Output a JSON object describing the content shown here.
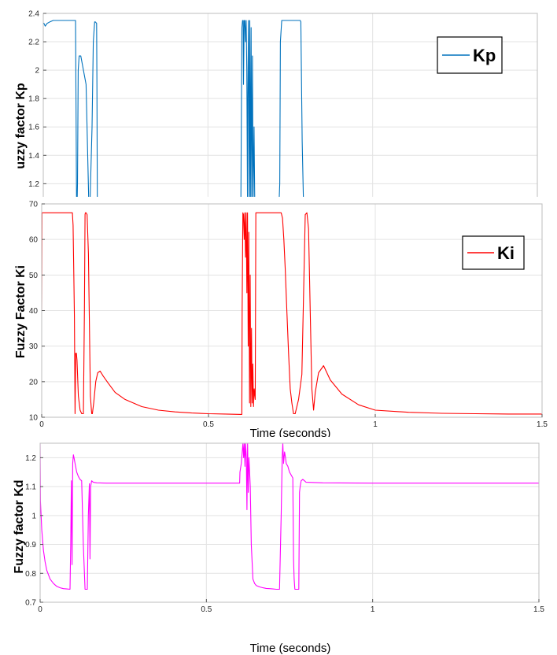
{
  "chart_data": [
    {
      "type": "line",
      "ylabel": "uzzy factor Kp",
      "xlabel": "",
      "xlim": [
        0,
        1.5
      ],
      "ylim": [
        1.08,
        2.4
      ],
      "yticks": [
        "2.4",
        "2.2",
        "2",
        "1.8",
        "1.6",
        "1.4",
        "1.2"
      ],
      "xticks": [],
      "grid": true,
      "legend_position": "top-right",
      "series": [
        {
          "name": "Kp",
          "color": "#0072bd",
          "x": [
            0,
            0.002,
            0.006,
            0.012,
            0.02,
            0.03,
            0.04,
            0.08,
            0.098,
            0.1,
            0.101,
            0.103,
            0.104,
            0.106,
            0.109,
            0.114,
            0.13,
            0.138,
            0.142,
            0.148,
            0.152,
            0.156,
            0.158,
            0.162,
            0.163,
            0.164,
            0.165,
            0.3,
            0.5,
            0.6,
            0.601,
            0.603,
            0.605,
            0.607,
            0.608,
            0.61,
            0.612,
            0.614,
            0.616,
            0.618,
            0.62,
            0.621,
            0.623,
            0.625,
            0.627,
            0.629,
            0.631,
            0.633,
            0.635,
            0.637,
            0.64,
            0.642,
            0.643,
            0.648,
            0.65,
            0.7,
            0.716,
            0.718,
            0.72,
            0.724,
            0.728,
            0.73,
            0.732,
            0.735,
            0.74,
            0.745,
            0.75,
            0.755,
            0.76,
            0.765,
            0.77,
            0.775,
            0.78,
            0.782,
            0.786,
            0.79,
            0.792,
            0.795,
            0.8,
            0.803,
            0.805,
            1.0
          ],
          "values": [
            2.33,
            2.33,
            2.31,
            2.33,
            2.34,
            2.35,
            2.35,
            2.35,
            2.35,
            1.5,
            1.08,
            1.08,
            1.2,
            2.0,
            2.1,
            2.1,
            1.9,
            1.08,
            1.08,
            1.6,
            2.2,
            2.34,
            2.34,
            2.33,
            1.9,
            1.08,
            1.08,
            1.08,
            1.08,
            1.08,
            1.5,
            2.3,
            2.35,
            2.35,
            1.9,
            2.35,
            2.35,
            2.2,
            2.35,
            2.0,
            1.08,
            1.8,
            2.35,
            1.08,
            2.35,
            1.08,
            2.3,
            1.08,
            2.1,
            1.08,
            1.6,
            1.08,
            1.08,
            1.08,
            1.08,
            1.08,
            1.08,
            1.2,
            2.2,
            2.35,
            2.35,
            2.35,
            2.35,
            2.35,
            2.35,
            2.35,
            2.35,
            2.35,
            2.35,
            2.35,
            2.35,
            2.35,
            2.35,
            2.34,
            1.5,
            1.08,
            1.08,
            1.08,
            1.08,
            1.08,
            1.08,
            1.08
          ]
        }
      ]
    },
    {
      "type": "line",
      "ylabel": "Fuzzy Factor Ki",
      "xlabel": "Time (seconds)",
      "xlim": [
        0,
        1.5
      ],
      "ylim": [
        10,
        70
      ],
      "yticks": [
        "70",
        "60",
        "50",
        "40",
        "30",
        "20",
        "10"
      ],
      "xticks": [
        "0",
        "0.5",
        "1",
        "1.5"
      ],
      "grid": true,
      "legend_position": "top-right",
      "series": [
        {
          "name": "Ki",
          "color": "#ff0000",
          "x": [
            0,
            0.001,
            0.09,
            0.092,
            0.094,
            0.096,
            0.098,
            0.1,
            0.102,
            0.104,
            0.106,
            0.11,
            0.115,
            0.12,
            0.125,
            0.128,
            0.13,
            0.131,
            0.133,
            0.136,
            0.14,
            0.146,
            0.149,
            0.15,
            0.152,
            0.156,
            0.162,
            0.168,
            0.175,
            0.185,
            0.2,
            0.22,
            0.25,
            0.3,
            0.35,
            0.4,
            0.45,
            0.5,
            0.55,
            0.6,
            0.601,
            0.603,
            0.605,
            0.607,
            0.609,
            0.611,
            0.613,
            0.615,
            0.617,
            0.619,
            0.621,
            0.623,
            0.625,
            0.627,
            0.629,
            0.631,
            0.633,
            0.635,
            0.637,
            0.64,
            0.642,
            0.645,
            0.65,
            0.7,
            0.718,
            0.722,
            0.726,
            0.73,
            0.735,
            0.74,
            0.745,
            0.75,
            0.755,
            0.76,
            0.77,
            0.78,
            0.79,
            0.795,
            0.8,
            0.805,
            0.81,
            0.815,
            0.82,
            0.83,
            0.845,
            0.865,
            0.9,
            0.95,
            1.0,
            1.1,
            1.2,
            1.3,
            1.4,
            1.5
          ],
          "values": [
            40,
            67.5,
            67.5,
            67.5,
            64,
            52,
            38,
            11,
            28,
            28,
            26,
            16,
            12,
            11,
            11,
            40,
            67,
            67.5,
            67.5,
            67,
            56,
            16,
            12,
            11,
            11,
            14,
            20,
            22.5,
            23,
            21.5,
            19.5,
            17,
            15,
            13,
            12,
            11.5,
            11.2,
            11,
            10.9,
            10.8,
            40,
            67.5,
            67,
            60,
            67.5,
            55,
            67.5,
            45,
            67.5,
            30,
            62,
            14,
            50,
            13,
            35,
            14,
            25,
            13,
            18,
            15,
            67.5,
            67.5,
            67.5,
            67.5,
            67.5,
            66,
            60,
            52,
            40,
            28,
            18,
            14,
            11,
            11,
            15,
            22,
            67,
            67.5,
            63,
            40,
            18,
            12,
            17,
            22.5,
            24.5,
            20.5,
            16.5,
            13.5,
            12,
            11.4,
            11.1,
            11,
            10.9,
            10.9
          ]
        }
      ]
    },
    {
      "type": "line",
      "ylabel": "Fuzzy factor Kd",
      "xlabel": "Time (seconds)",
      "xlim": [
        0,
        1.5
      ],
      "ylim": [
        0.7,
        1.25
      ],
      "yticks": [
        "1.2",
        "1.1",
        "1",
        "0.9",
        "0.8",
        "0.7"
      ],
      "xticks": [
        "0",
        "0.5",
        "1",
        "1.5"
      ],
      "grid": true,
      "legend_position": "none",
      "series": [
        {
          "name": "",
          "color": "#ff00ff",
          "x": [
            0,
            0.001,
            0.005,
            0.01,
            0.015,
            0.02,
            0.03,
            0.04,
            0.05,
            0.06,
            0.07,
            0.08,
            0.09,
            0.092,
            0.094,
            0.096,
            0.098,
            0.1,
            0.102,
            0.105,
            0.11,
            0.115,
            0.12,
            0.125,
            0.13,
            0.135,
            0.14,
            0.141,
            0.142,
            0.145,
            0.148,
            0.15,
            0.152,
            0.155,
            0.16,
            0.17,
            0.2,
            0.3,
            0.4,
            0.5,
            0.6,
            0.601,
            0.605,
            0.61,
            0.612,
            0.614,
            0.616,
            0.618,
            0.62,
            0.622,
            0.624,
            0.626,
            0.628,
            0.63,
            0.632,
            0.635,
            0.64,
            0.645,
            0.65,
            0.66,
            0.67,
            0.68,
            0.69,
            0.7,
            0.71,
            0.72,
            0.725,
            0.728,
            0.73,
            0.732,
            0.735,
            0.738,
            0.74,
            0.745,
            0.75,
            0.76,
            0.762,
            0.764,
            0.766,
            0.77,
            0.772,
            0.774,
            0.776,
            0.778,
            0.78,
            0.782,
            0.785,
            0.79,
            0.795,
            0.8,
            0.85,
            1.0,
            1.2,
            1.4,
            1.5
          ],
          "values": [
            1.25,
            1.05,
            0.95,
            0.88,
            0.84,
            0.81,
            0.78,
            0.765,
            0.755,
            0.75,
            0.747,
            0.746,
            0.745,
            0.9,
            1.12,
            0.83,
            1.18,
            1.21,
            1.2,
            1.18,
            1.15,
            1.135,
            1.125,
            1.12,
            0.9,
            0.745,
            0.745,
            0.745,
            0.745,
            1.0,
            1.11,
            0.85,
            1.1,
            1.12,
            1.115,
            1.113,
            1.112,
            1.112,
            1.112,
            1.112,
            1.112,
            1.15,
            1.18,
            1.25,
            1.2,
            1.25,
            1.17,
            1.25,
            1.2,
            1.02,
            1.25,
            1.08,
            1.2,
            1.15,
            1.1,
            0.9,
            0.78,
            0.765,
            0.758,
            0.753,
            0.75,
            0.748,
            0.747,
            0.746,
            0.745,
            0.745,
            1.0,
            1.2,
            1.25,
            1.18,
            1.22,
            1.2,
            1.18,
            1.17,
            1.15,
            1.13,
            0.85,
            0.78,
            0.745,
            0.745,
            0.745,
            0.745,
            0.745,
            0.745,
            1.08,
            1.1,
            1.12,
            1.125,
            1.12,
            1.115,
            1.113,
            1.112,
            1.112,
            1.112,
            1.112
          ]
        }
      ]
    }
  ]
}
